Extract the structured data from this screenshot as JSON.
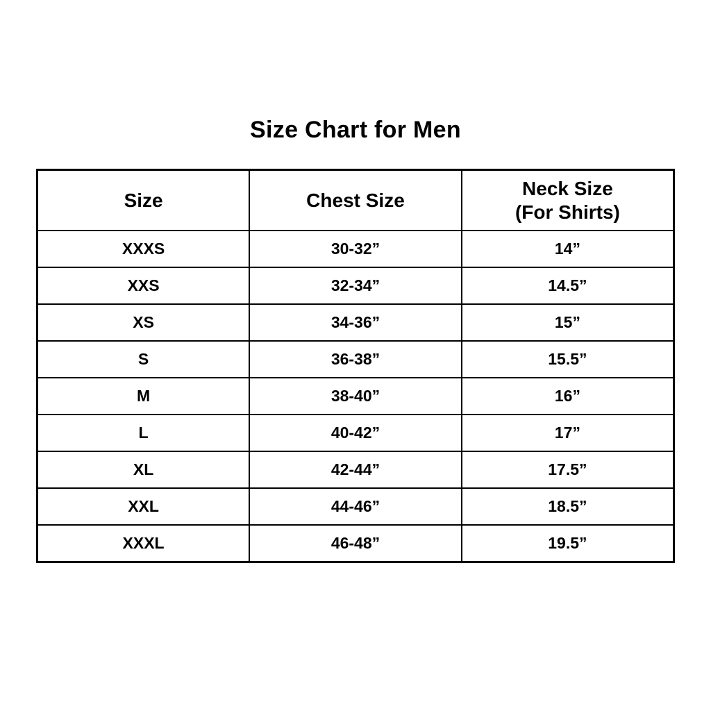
{
  "page": {
    "background_color": "#ffffff",
    "text_color": "#000000",
    "border_color": "#000000"
  },
  "title": "Size Chart for Men",
  "table": {
    "header_lines": [
      [
        "Size"
      ],
      [
        "Chest Size"
      ],
      [
        "Neck Size",
        "(For Shirts)"
      ]
    ]
  },
  "chart_data": {
    "type": "table",
    "title": "Size Chart for Men",
    "columns": [
      "Size",
      "Chest Size",
      "Neck Size (For Shirts)"
    ],
    "rows": [
      [
        "XXXS",
        "30-32”",
        "14”"
      ],
      [
        "XXS",
        "32-34”",
        "14.5”"
      ],
      [
        "XS",
        "34-36”",
        "15”"
      ],
      [
        "S",
        "36-38”",
        "15.5”"
      ],
      [
        "M",
        "38-40”",
        "16”"
      ],
      [
        "L",
        "40-42”",
        "17”"
      ],
      [
        "XL",
        "42-44”",
        "17.5”"
      ],
      [
        "XXL",
        "44-46”",
        "18.5”"
      ],
      [
        "XXXL",
        "46-48”",
        "19.5”"
      ]
    ],
    "layout": {
      "grid": true,
      "header_row": true,
      "columns_equal_width": true
    }
  }
}
